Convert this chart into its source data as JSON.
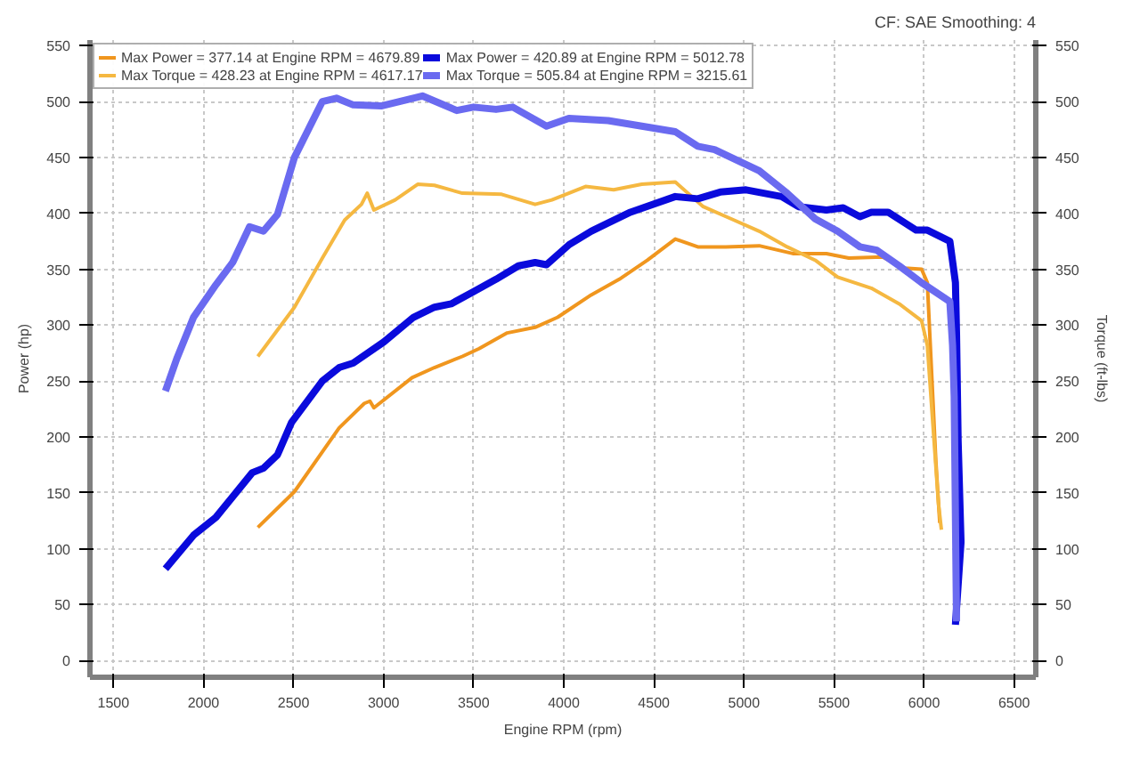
{
  "chart_data": {
    "type": "line",
    "xlabel": "Engine RPM (rpm)",
    "ylabel": "Power (hp)",
    "y2label": "Torque (ft-lbs)",
    "annotations": [
      "CF: SAE Smoothing: 4"
    ],
    "xlim": [
      1370,
      6620
    ],
    "xticks": [
      1500,
      2000,
      2500,
      3000,
      3500,
      4000,
      4500,
      5000,
      5500,
      6000,
      6500
    ],
    "ylim": [
      -15,
      555
    ],
    "yticks": [
      0,
      50,
      100,
      150,
      200,
      250,
      300,
      350,
      400,
      450,
      500,
      550
    ],
    "y2lim": [
      -15,
      555
    ],
    "y2ticks": [
      0,
      50,
      100,
      150,
      200,
      250,
      300,
      350,
      400,
      450,
      500,
      550
    ],
    "grid": true,
    "legend": "top left",
    "line_style": "solid",
    "series": [
      {
        "name": "Max Power = 377.14 at Engine RPM = 4679.89",
        "color": "#f0961e",
        "x": [
          2302,
          2505,
          2753,
          2893,
          2924,
          2946,
          3158,
          3282,
          3437,
          3530,
          3686,
          3841,
          3966,
          4152,
          4308,
          4464,
          4619,
          4744,
          4899,
          5085,
          5271,
          5458,
          5582,
          5769,
          5893,
          5986,
          6018,
          6065,
          6087
        ],
        "values": [
          119,
          151,
          208,
          230,
          232,
          226,
          253,
          262,
          272,
          279,
          293,
          298,
          307,
          327,
          341,
          358,
          377,
          370,
          370,
          371,
          364,
          364,
          360,
          361,
          351,
          350,
          338,
          179,
          123
        ]
      },
      {
        "name": "Max Torque = 428.23 at Engine RPM = 4617.17",
        "color": "#f5b841",
        "x": [
          2302,
          2505,
          2660,
          2784,
          2877,
          2909,
          2946,
          3064,
          3189,
          3282,
          3437,
          3655,
          3841,
          3934,
          4121,
          4277,
          4433,
          4619,
          4774,
          4930,
          5085,
          5240,
          5396,
          5520,
          5707,
          5862,
          5986,
          6018,
          6080,
          6096
        ],
        "values": [
          272,
          316,
          360,
          394,
          408,
          418,
          403,
          412,
          426,
          425,
          418,
          417,
          408,
          412,
          424,
          421,
          426,
          428,
          406,
          395,
          384,
          370,
          358,
          343,
          333,
          319,
          304,
          282,
          140,
          117
        ]
      },
      {
        "name": "Max Power = 420.89 at Engine RPM = 5012.78",
        "color": "#0a0adc",
        "x": [
          1789,
          1945,
          2069,
          2271,
          2333,
          2411,
          2489,
          2660,
          2753,
          2831,
          3002,
          3166,
          3282,
          3375,
          3499,
          3624,
          3748,
          3841,
          3904,
          4030,
          4152,
          4370,
          4619,
          4744,
          4868,
          5012,
          5209,
          5302,
          5458,
          5551,
          5644,
          5707,
          5800,
          5956,
          6018,
          6143,
          6174,
          6180,
          6189,
          6205,
          6174
        ],
        "values": [
          82,
          112,
          128,
          168,
          172,
          184,
          213,
          250,
          262,
          266,
          285,
          307,
          316,
          319,
          330,
          341,
          353,
          356,
          354,
          372,
          384,
          401,
          415,
          413,
          419,
          421,
          415,
          406,
          403,
          405,
          397,
          401,
          401,
          385,
          385,
          375,
          338,
          293,
          196,
          106,
          32
        ]
      },
      {
        "name": "Max Torque = 505.84 at Engine RPM = 3215.61",
        "color": "#6a6af0",
        "x": [
          1789,
          1852,
          1945,
          2069,
          2162,
          2256,
          2333,
          2411,
          2505,
          2660,
          2738,
          2831,
          2986,
          3215,
          3406,
          3499,
          3624,
          3717,
          3904,
          4028,
          4246,
          4433,
          4619,
          4744,
          4837,
          5085,
          5240,
          5396,
          5520,
          5644,
          5738,
          5862,
          5986,
          6143,
          6158,
          6167,
          6180
        ],
        "values": [
          241,
          270,
          307,
          336,
          356,
          388,
          384,
          399,
          450,
          500,
          503,
          497,
          496,
          505,
          492,
          495,
          493,
          495,
          478,
          485,
          483,
          478,
          473,
          460,
          457,
          438,
          418,
          395,
          384,
          370,
          367,
          353,
          338,
          321,
          282,
          236,
          35
        ]
      }
    ]
  }
}
